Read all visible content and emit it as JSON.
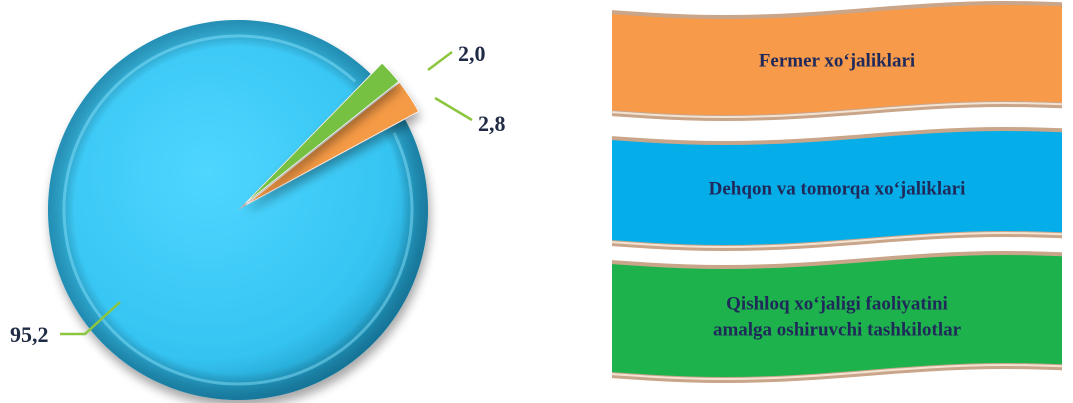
{
  "chart_data": {
    "type": "pie",
    "categories": [
      "Fermer xo‘jaliklari",
      "Dehqon va tomorqa xo‘jaliklari",
      "Qishloq xo‘jaligi faoliyatini amalga oshiruvchi tashkilotlar"
    ],
    "values": [
      2.8,
      95.2,
      2.0
    ],
    "data_labels": [
      "2,8",
      "95,2",
      "2,0"
    ],
    "colors": [
      "#f59a45",
      "#3bc8f5",
      "#76c043"
    ],
    "legend": {
      "placement": "right",
      "entries": [
        {
          "lines": [
            "Fermer xo‘jaliklari"
          ],
          "color": "#f79a4a"
        },
        {
          "lines": [
            "Dehqon va tomorqa xo‘jaliklari"
          ],
          "color": "#06aee9"
        },
        {
          "lines": [
            "Qishloq xo‘jaligi faoliyatini",
            "amalga oshiruvchi tashkilotlar"
          ],
          "color": "#1db24b"
        }
      ]
    }
  }
}
